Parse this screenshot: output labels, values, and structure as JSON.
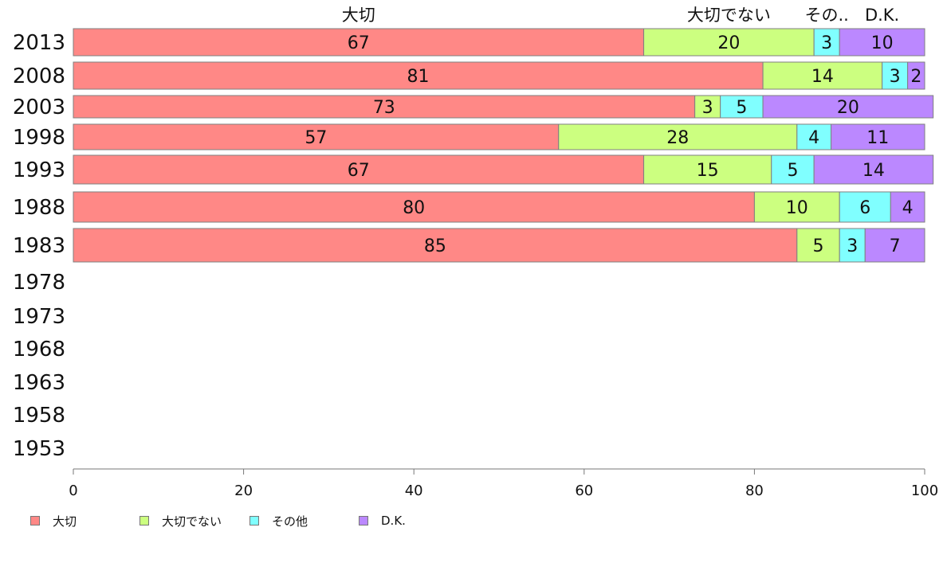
{
  "chart_data": {
    "type": "bar",
    "orientation": "horizontal",
    "stacked": true,
    "categories": [
      "2013",
      "2008",
      "2003",
      "1998",
      "1993",
      "1988",
      "1983",
      "1978",
      "1973",
      "1968",
      "1963",
      "1958",
      "1953"
    ],
    "series": [
      {
        "name": "大切",
        "header": "大切",
        "color": "#ff8886",
        "values": [
          67,
          81,
          73,
          57,
          67,
          80,
          85,
          null,
          null,
          null,
          null,
          null,
          null
        ]
      },
      {
        "name": "大切でない",
        "header": "大切でない",
        "color": "#ccff80",
        "values": [
          20,
          14,
          3,
          28,
          15,
          10,
          5,
          null,
          null,
          null,
          null,
          null,
          null
        ]
      },
      {
        "name": "その他",
        "header": "その..",
        "color": "#80ffff",
        "values": [
          3,
          3,
          5,
          4,
          5,
          6,
          3,
          null,
          null,
          null,
          null,
          null,
          null
        ]
      },
      {
        "name": "D.K.",
        "header": "D.K.",
        "color": "#bb88ff",
        "values": [
          10,
          2,
          20,
          11,
          14,
          4,
          7,
          null,
          null,
          null,
          null,
          null,
          null
        ]
      }
    ],
    "xlim": [
      0,
      100
    ],
    "xticks": [
      0,
      20,
      40,
      60,
      80,
      100
    ],
    "title": "",
    "xlabel": "",
    "ylabel": "",
    "grid": false,
    "legend": "bottom-left"
  }
}
